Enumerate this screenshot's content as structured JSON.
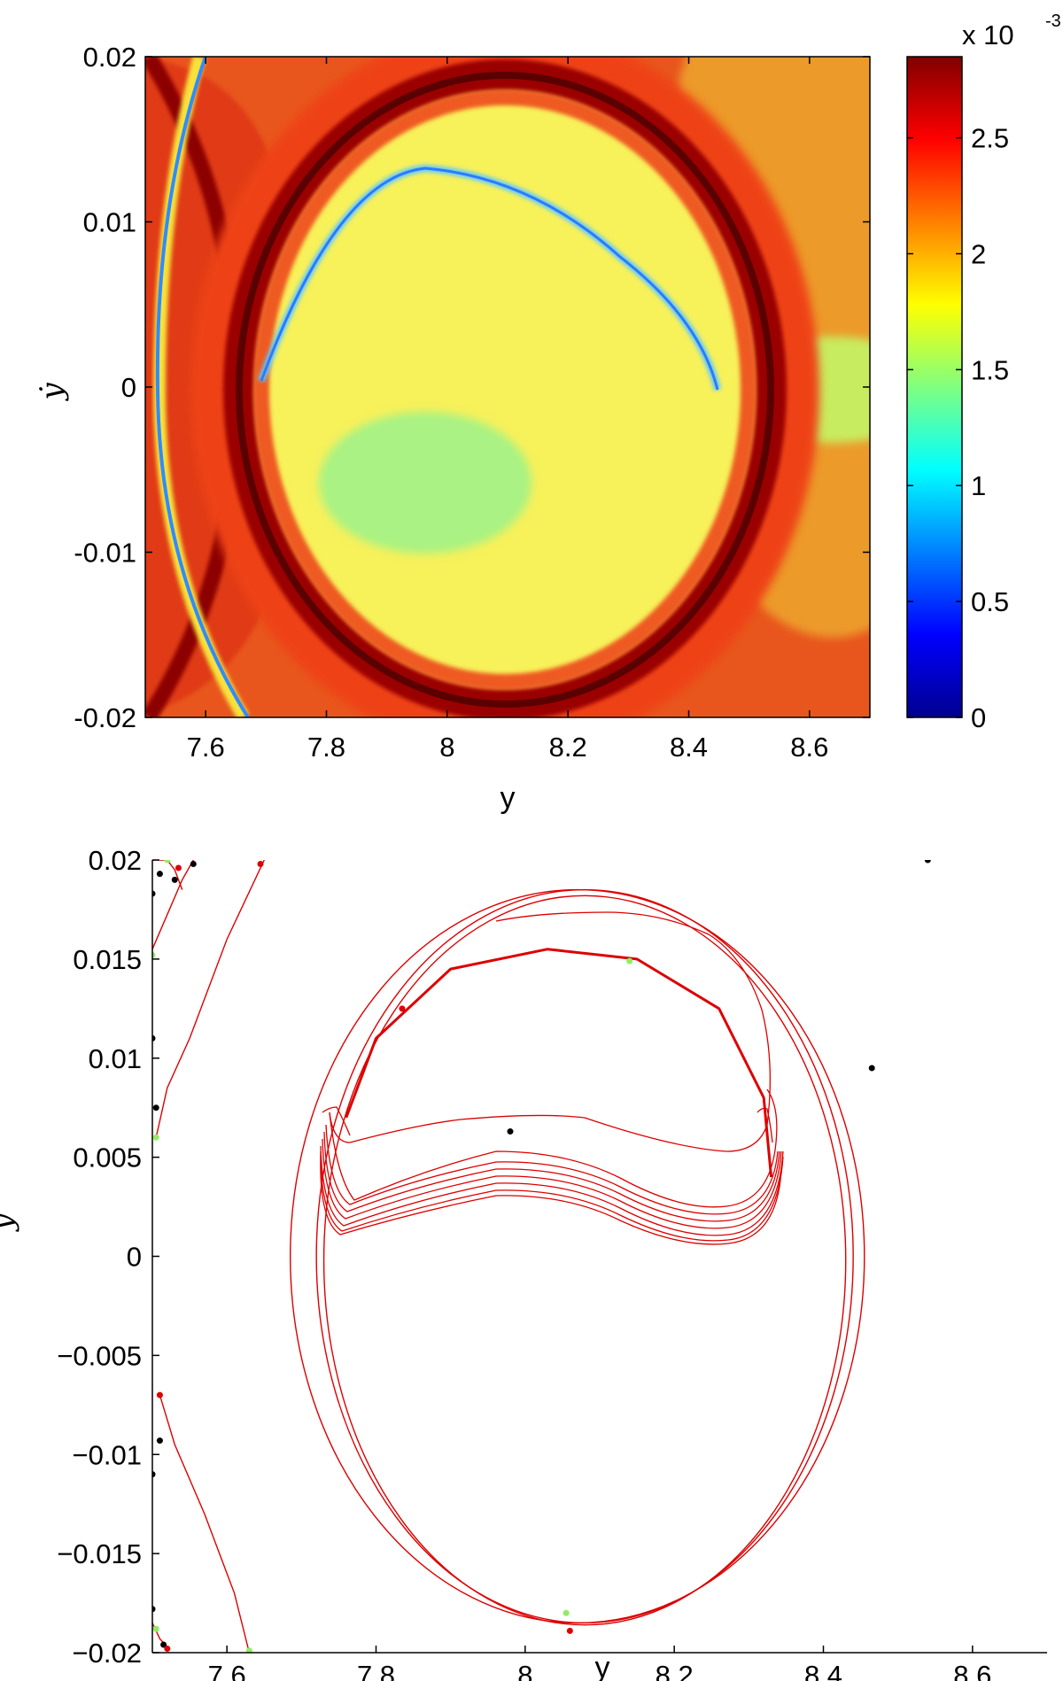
{
  "chart_data": [
    {
      "type": "heatmap",
      "xlabel": "y",
      "ylabel": "ẏ",
      "x_ticks": [
        "7.6",
        "7.8",
        "8",
        "8.2",
        "8.4",
        "8.6"
      ],
      "x_tick_values": [
        7.6,
        7.8,
        8.0,
        8.2,
        8.4,
        8.6
      ],
      "y_ticks": [
        "-0.02",
        "-0.01",
        "0",
        "0.01",
        "0.02"
      ],
      "y_tick_values": [
        -0.02,
        -0.01,
        0,
        0.01,
        0.02
      ],
      "xlim": [
        7.5,
        8.7
      ],
      "ylim": [
        -0.02,
        0.02
      ],
      "colorbar": {
        "exponent_label": "x 10",
        "exponent": "-3",
        "ticks": [
          "0",
          "0.5",
          "1",
          "1.5",
          "2",
          "2.5"
        ],
        "tick_values": [
          0,
          0.5,
          1,
          1.5,
          2,
          2.5
        ],
        "range": [
          0,
          2.85
        ],
        "colormap": "jet"
      },
      "features": {
        "outer_ring_center": [
          8.09,
          0.0
        ],
        "outer_ring_radius": [
          0.44,
          0.0196
        ],
        "blue_curve_apex": [
          8.0,
          0.0125
        ],
        "interior_level": 1.6,
        "ring_level": 2.85
      },
      "grid": false
    },
    {
      "type": "line",
      "xlabel": "y",
      "ylabel": "ẏ",
      "x_ticks": [
        "7.6",
        "7.8",
        "8",
        "8.2",
        "8.4",
        "8.6"
      ],
      "x_tick_values": [
        7.6,
        7.8,
        8.0,
        8.2,
        8.4,
        8.6
      ],
      "y_ticks": [
        "0.02",
        "0.015",
        "0.01",
        "0.005",
        "0",
        "−0.005",
        "−0.01",
        "−0.015",
        "−0.02"
      ],
      "y_tick_values": [
        0.02,
        0.015,
        0.01,
        0.005,
        0,
        -0.005,
        -0.01,
        -0.015,
        -0.02
      ],
      "xlim": [
        7.5,
        8.7
      ],
      "ylim": [
        -0.02,
        0.02
      ],
      "line_color": "#dd0000",
      "series": [
        {
          "values": [
            [
              7.5,
              0.02
            ],
            [
              7.52,
              0.02
            ],
            [
              7.53,
              0.0195
            ],
            [
              7.54,
              0.0185
            ]
          ]
        },
        {
          "values": [
            [
              7.5,
              0.0155
            ],
            [
              7.54,
              0.019
            ],
            [
              7.555,
              0.02
            ]
          ]
        },
        {
          "values": [
            [
              7.505,
              0.006
            ],
            [
              7.52,
              0.0085
            ],
            [
              7.55,
              0.011
            ],
            [
              7.6,
              0.016
            ],
            [
              7.65,
              0.02
            ]
          ]
        },
        {
          "values": [
            [
              7.51,
              -0.007
            ],
            [
              7.53,
              -0.0095
            ],
            [
              7.57,
              -0.013
            ],
            [
              7.61,
              -0.017
            ],
            [
              7.63,
              -0.02
            ]
          ]
        },
        {
          "values": [
            [
              7.5,
              -0.0185
            ],
            [
              7.51,
              -0.0193
            ],
            [
              7.52,
              -0.0197
            ]
          ]
        }
      ],
      "closed_loops": [
        {
          "name": "outer ring a",
          "center": [
            8.08,
            0.0
          ],
          "radius": [
            0.36,
            0.0185
          ]
        },
        {
          "name": "outer ring b",
          "center": [
            8.07,
            0.0
          ],
          "radius": [
            0.385,
            0.0185
          ]
        },
        {
          "name": "outer ring c",
          "center": [
            8.08,
            -0.0002
          ],
          "radius": [
            0.35,
            0.0184
          ]
        },
        {
          "name": "middle arc top",
          "points": [
            [
              7.76,
              0.007
            ],
            [
              7.8,
              0.011
            ],
            [
              7.9,
              0.0145
            ],
            [
              8.03,
              0.0155
            ],
            [
              8.15,
              0.015
            ],
            [
              8.26,
              0.0125
            ],
            [
              8.32,
              0.008
            ],
            [
              8.33,
              0.004
            ]
          ]
        }
      ],
      "markers": [
        {
          "x": 7.5,
          "y": 0.0183,
          "color": "#000000"
        },
        {
          "x": 7.51,
          "y": 0.0193,
          "color": "#000000"
        },
        {
          "x": 7.52,
          "y": 0.02,
          "color": "#90ee60"
        },
        {
          "x": 7.53,
          "y": 0.019,
          "color": "#000000"
        },
        {
          "x": 7.535,
          "y": 0.0196,
          "color": "#dd0000"
        },
        {
          "x": 7.555,
          "y": 0.0198,
          "color": "#000000"
        },
        {
          "x": 7.645,
          "y": 0.0198,
          "color": "#dd0000"
        },
        {
          "x": 7.5,
          "y": 0.0152,
          "color": "#90ee60"
        },
        {
          "x": 7.5,
          "y": 0.011,
          "color": "#000000"
        },
        {
          "x": 7.505,
          "y": 0.0075,
          "color": "#000000"
        },
        {
          "x": 7.505,
          "y": 0.006,
          "color": "#90ee60"
        },
        {
          "x": 7.51,
          "y": -0.007,
          "color": "#dd0000"
        },
        {
          "x": 7.5,
          "y": -0.011,
          "color": "#000000"
        },
        {
          "x": 7.51,
          "y": -0.0093,
          "color": "#000000"
        },
        {
          "x": 7.5,
          "y": -0.0178,
          "color": "#000000"
        },
        {
          "x": 7.505,
          "y": -0.0188,
          "color": "#90ee60"
        },
        {
          "x": 7.515,
          "y": -0.0196,
          "color": "#000000"
        },
        {
          "x": 7.52,
          "y": -0.0198,
          "color": "#dd0000"
        },
        {
          "x": 7.63,
          "y": -0.0199,
          "color": "#90ee60"
        },
        {
          "x": 7.835,
          "y": 0.0125,
          "color": "#dd0000"
        },
        {
          "x": 7.98,
          "y": 0.0063,
          "color": "#000000"
        },
        {
          "x": 8.14,
          "y": 0.0149,
          "color": "#90ee60"
        },
        {
          "x": 8.465,
          "y": 0.0095,
          "color": "#000000"
        },
        {
          "x": 8.54,
          "y": 0.02,
          "color": "#000000"
        },
        {
          "x": 8.055,
          "y": -0.018,
          "color": "#90ee60"
        },
        {
          "x": 8.06,
          "y": -0.0189,
          "color": "#dd0000"
        }
      ],
      "grid": false
    }
  ]
}
